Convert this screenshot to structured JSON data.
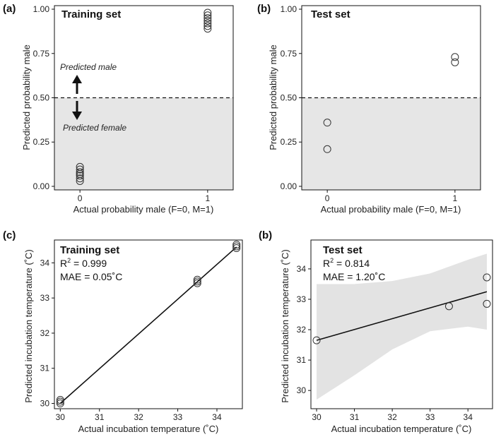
{
  "chart_data": [
    {
      "panel_label": "(a)",
      "type": "scatter",
      "title": "Training set",
      "xlabel": "Actual probability male (F=0, M=1)",
      "ylabel": "Predicted probability male",
      "xlim": [
        -0.2,
        1.2
      ],
      "ylim": [
        -0.02,
        1.02
      ],
      "x_ticks": [
        0,
        1
      ],
      "x_tick_labels": [
        "0",
        "1"
      ],
      "y_ticks": [
        0,
        0.25,
        0.5,
        0.75,
        1.0
      ],
      "y_tick_labels": [
        "0.00",
        "0.25",
        "0.50",
        "0.75",
        "1.00"
      ],
      "threshold": 0.5,
      "shaded_below_threshold": true,
      "annotation_up": "Predicted male",
      "annotation_down": "Predicted female",
      "points": [
        {
          "x": 0,
          "y": 0.03
        },
        {
          "x": 0,
          "y": 0.045
        },
        {
          "x": 0,
          "y": 0.06
        },
        {
          "x": 0,
          "y": 0.07
        },
        {
          "x": 0,
          "y": 0.08
        },
        {
          "x": 0,
          "y": 0.095
        },
        {
          "x": 0,
          "y": 0.11
        },
        {
          "x": 1,
          "y": 0.89
        },
        {
          "x": 1,
          "y": 0.905
        },
        {
          "x": 1,
          "y": 0.92
        },
        {
          "x": 1,
          "y": 0.935
        },
        {
          "x": 1,
          "y": 0.95
        },
        {
          "x": 1,
          "y": 0.965
        },
        {
          "x": 1,
          "y": 0.98
        }
      ]
    },
    {
      "panel_label": "(b)",
      "type": "scatter",
      "title": "Test set",
      "xlabel": "Actual probability male (F=0, M=1)",
      "ylabel": "Predicted probability male",
      "xlim": [
        -0.2,
        1.2
      ],
      "ylim": [
        -0.02,
        1.02
      ],
      "x_ticks": [
        0,
        1
      ],
      "x_tick_labels": [
        "0",
        "1"
      ],
      "y_ticks": [
        0,
        0.25,
        0.5,
        0.75,
        1.0
      ],
      "y_tick_labels": [
        "0.00",
        "0.25",
        "0.50",
        "0.75",
        "1.00"
      ],
      "threshold": 0.5,
      "shaded_below_threshold": true,
      "points": [
        {
          "x": 0,
          "y": 0.21
        },
        {
          "x": 0,
          "y": 0.36
        },
        {
          "x": 1,
          "y": 0.7
        },
        {
          "x": 1,
          "y": 0.73
        }
      ]
    },
    {
      "panel_label": "(c)",
      "type": "scatter",
      "title": "Training set",
      "stat_r2_label": "R",
      "stat_r2_sup": "2",
      "stat_r2_value": " = 0.999",
      "stat_mae": "MAE = 0.05˚C",
      "xlabel": "Actual incubation temperature (˚C)",
      "ylabel": "Predicted incubation temperature (˚C)",
      "xlim": [
        29.85,
        34.65
      ],
      "ylim": [
        29.85,
        34.65
      ],
      "x_ticks": [
        30,
        31,
        32,
        33,
        34
      ],
      "x_tick_labels": [
        "30",
        "31",
        "32",
        "33",
        "34"
      ],
      "y_ticks": [
        30,
        31,
        32,
        33,
        34
      ],
      "y_tick_labels": [
        "30",
        "31",
        "32",
        "33",
        "34"
      ],
      "fit_line": {
        "x": [
          30,
          34.5
        ],
        "y": [
          30.0,
          34.45
        ]
      },
      "points": [
        {
          "x": 30,
          "y": 30.0
        },
        {
          "x": 30,
          "y": 30.05
        },
        {
          "x": 30,
          "y": 30.1
        },
        {
          "x": 33.5,
          "y": 33.42
        },
        {
          "x": 33.5,
          "y": 33.47
        },
        {
          "x": 33.5,
          "y": 33.52
        },
        {
          "x": 34.5,
          "y": 34.42
        },
        {
          "x": 34.5,
          "y": 34.47
        },
        {
          "x": 34.5,
          "y": 34.52
        }
      ]
    },
    {
      "panel_label": "(b)",
      "type": "scatter",
      "title": "Test set",
      "stat_r2_label": "R",
      "stat_r2_sup": "2",
      "stat_r2_value": " = 0.814",
      "stat_mae": "MAE = 1.20˚C",
      "xlabel": "Actual incubation temperature (˚C)",
      "ylabel": "Predicted incubation temperature (˚C)",
      "xlim": [
        29.85,
        34.65
      ],
      "ylim": [
        29.4,
        34.95
      ],
      "x_ticks": [
        30,
        31,
        32,
        33,
        34
      ],
      "x_tick_labels": [
        "30",
        "31",
        "32",
        "33",
        "34"
      ],
      "y_ticks": [
        30,
        31,
        32,
        33,
        34
      ],
      "y_tick_labels": [
        "30",
        "31",
        "32",
        "33",
        "34"
      ],
      "fit_line": {
        "x": [
          30,
          34.5
        ],
        "y": [
          31.65,
          33.25
        ]
      },
      "confidence_band": {
        "x": [
          30,
          31,
          32,
          33,
          34,
          34.5
        ],
        "upper": [
          33.5,
          33.5,
          33.6,
          33.85,
          34.3,
          34.5
        ],
        "lower": [
          29.7,
          30.5,
          31.35,
          31.95,
          32.1,
          32.0
        ]
      },
      "points": [
        {
          "x": 30,
          "y": 31.65
        },
        {
          "x": 33.5,
          "y": 32.77
        },
        {
          "x": 34.5,
          "y": 32.85
        },
        {
          "x": 34.5,
          "y": 33.72
        }
      ]
    }
  ]
}
